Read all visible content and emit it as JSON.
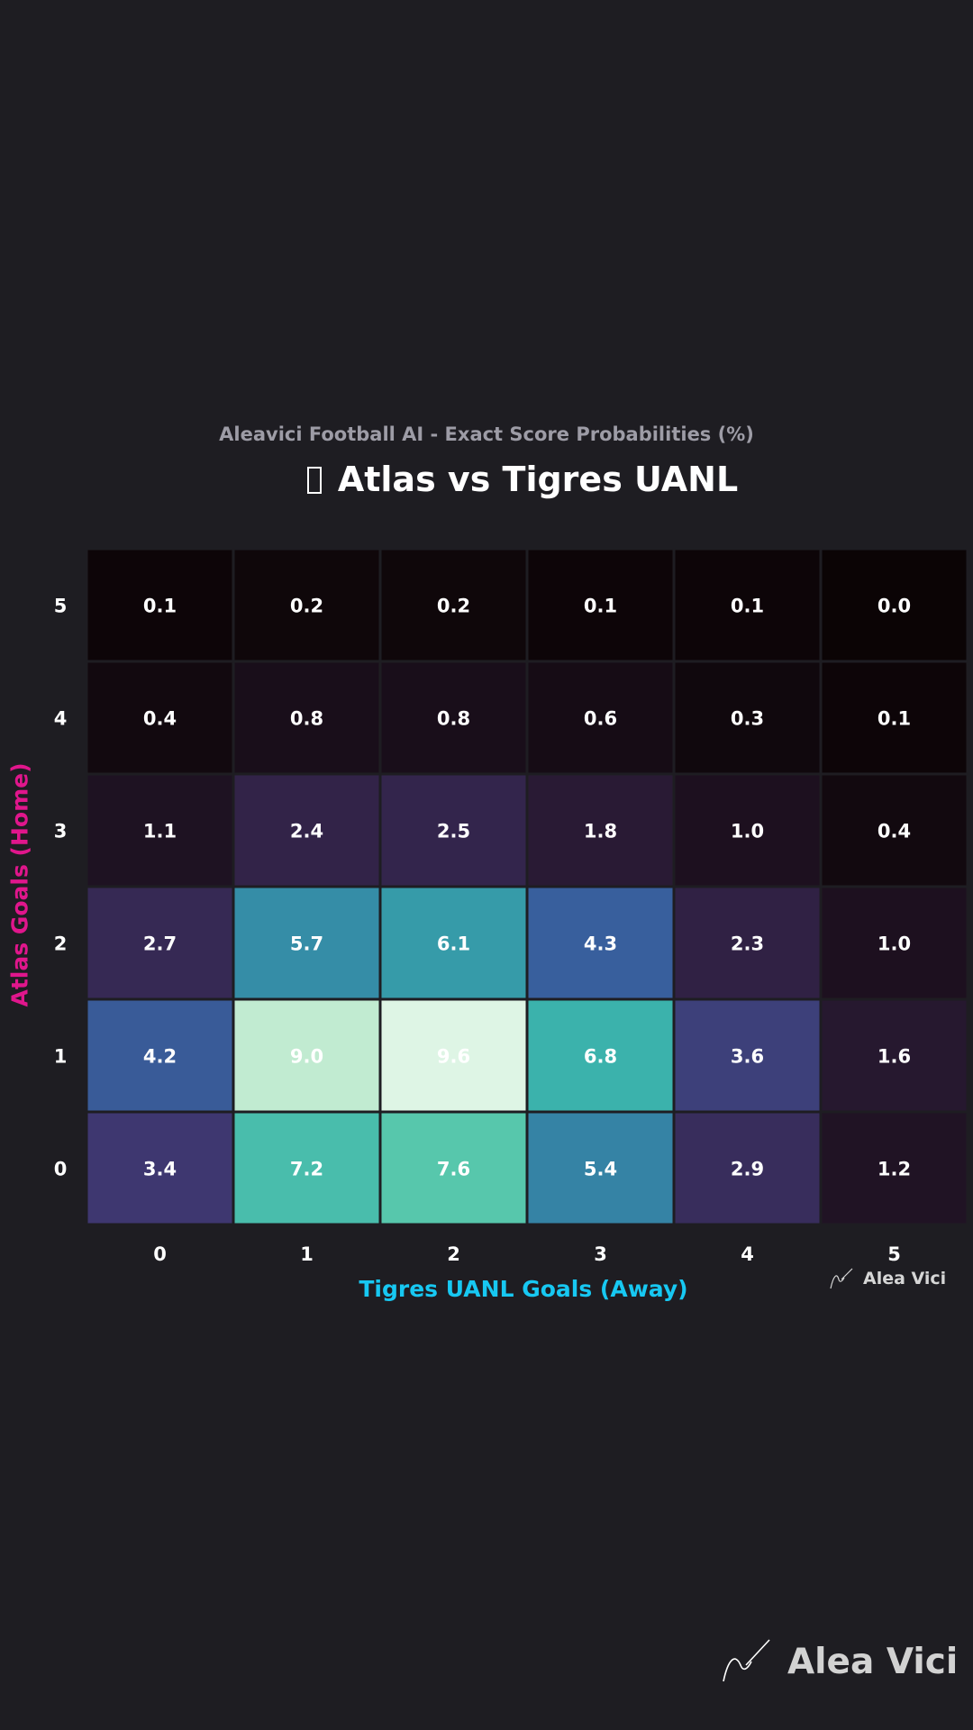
{
  "header": {
    "subtitle": "Aleavici Football AI - Exact Score Probabilities (%)",
    "title": "Atlas vs Tigres UANL",
    "title_icon": "missing-glyph-icon"
  },
  "chart_data": {
    "type": "heatmap",
    "title": "Atlas vs Tigres UANL",
    "subtitle": "Aleavici Football AI - Exact Score Probabilities (%)",
    "xlabel": "Tigres UANL Goals (Away)",
    "ylabel": "Atlas Goals (Home)",
    "x_categories": [
      "0",
      "1",
      "2",
      "3",
      "4",
      "5"
    ],
    "y_categories": [
      "5",
      "4",
      "3",
      "2",
      "1",
      "0"
    ],
    "values": [
      [
        0.1,
        0.2,
        0.2,
        0.1,
        0.1,
        0.0
      ],
      [
        0.4,
        0.8,
        0.8,
        0.6,
        0.3,
        0.1
      ],
      [
        1.1,
        2.4,
        2.5,
        1.8,
        1.0,
        0.4
      ],
      [
        2.7,
        5.7,
        6.1,
        4.3,
        2.3,
        1.0
      ],
      [
        4.2,
        9.0,
        9.6,
        6.8,
        3.6,
        1.6
      ],
      [
        3.4,
        7.2,
        7.6,
        5.4,
        2.9,
        1.2
      ]
    ],
    "colormap": "mako",
    "value_format": "0.1f",
    "colors": {
      "xlabel": "#17c8f2",
      "ylabel": "#e0168c",
      "cell_border": "#1e1d22",
      "cell_text": "#ffffff",
      "tick_text": "#ffffff"
    }
  },
  "watermark": {
    "small_text": "Alea Vici",
    "large_text": "Alea Vici",
    "icon": "signature-icon"
  }
}
